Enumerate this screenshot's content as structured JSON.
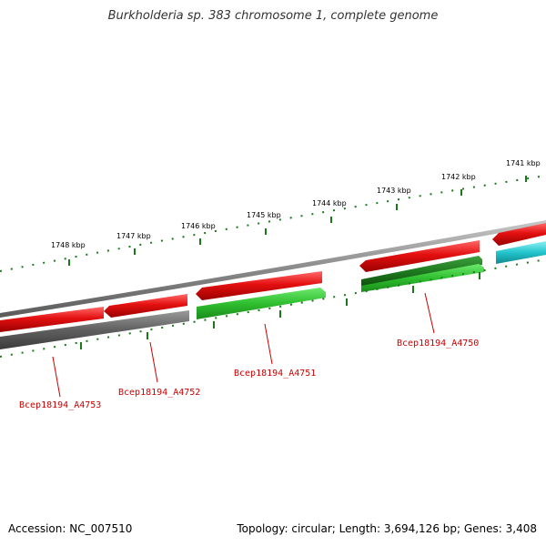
{
  "title": "Burkholderia sp. 383 chromosome 1, complete genome",
  "footer": {
    "accession": "Accession: NC_007510",
    "summary": "Topology: circular; Length: 3,694,126 bp; Genes: 3,408"
  },
  "scale_labels": [
    "1748 kbp",
    "1747 kbp",
    "1746 kbp",
    "1745 kbp",
    "1744 kbp",
    "1743 kbp",
    "1742 kbp",
    "1741 kbp"
  ],
  "gene_labels": [
    "Bcep18194_A4753",
    "Bcep18194_A4752",
    "Bcep18194_A4751",
    "Bcep18194_A4750"
  ],
  "colors": {
    "backbone": "#8a8a8a",
    "forward_cds": "#e41010",
    "reverse_gray": "#606060",
    "reverse_green": "#2fbf2f",
    "reverse_darkgreen": "#1e7a1e",
    "reverse_cyan": "#22c4cc",
    "ticks": "#1a7a1a",
    "gene_label": "#cc0000"
  }
}
